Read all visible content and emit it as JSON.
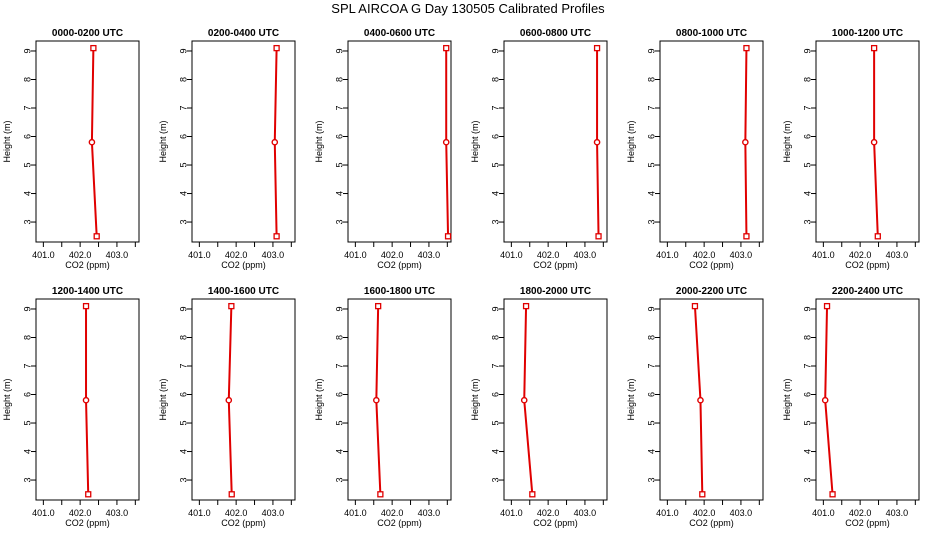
{
  "title": "SPL AIRCOA G  Day 130505  Calibrated Profiles",
  "chart_data": [
    {
      "type": "line",
      "title": "0000-0200 UTC",
      "xlabel": "CO2 (ppm)",
      "ylabel": "Height (m)",
      "xlim": [
        400.8,
        403.6
      ],
      "ylim": [
        2.3,
        9.35
      ],
      "xticks": [
        401.0,
        401.5,
        402.0,
        402.5,
        403.0,
        403.5
      ],
      "xticklabels": [
        "401.0",
        "",
        "402.0",
        "",
        "403.0",
        ""
      ],
      "yticks": [
        3,
        4,
        5,
        6,
        7,
        8,
        9
      ],
      "heights": [
        2.5,
        5.8,
        9.1
      ],
      "co2": [
        402.45,
        402.32,
        402.36
      ],
      "color": "#e00000"
    },
    {
      "type": "line",
      "title": "0200-0400 UTC",
      "xlabel": "CO2 (ppm)",
      "ylabel": "Height (m)",
      "xlim": [
        400.8,
        403.6
      ],
      "ylim": [
        2.3,
        9.35
      ],
      "xticks": [
        401.0,
        401.5,
        402.0,
        402.5,
        403.0,
        403.5
      ],
      "xticklabels": [
        "401.0",
        "",
        "402.0",
        "",
        "403.0",
        ""
      ],
      "yticks": [
        3,
        4,
        5,
        6,
        7,
        8,
        9
      ],
      "heights": [
        2.5,
        5.8,
        9.1
      ],
      "co2": [
        403.1,
        403.05,
        403.1
      ],
      "color": "#e00000"
    },
    {
      "type": "line",
      "title": "0400-0600 UTC",
      "xlabel": "CO2 (ppm)",
      "ylabel": "Height (m)",
      "xlim": [
        400.8,
        403.6
      ],
      "ylim": [
        2.3,
        9.35
      ],
      "xticks": [
        401.0,
        401.5,
        402.0,
        402.5,
        403.0,
        403.5
      ],
      "xticklabels": [
        "401.0",
        "",
        "402.0",
        "",
        "403.0",
        ""
      ],
      "yticks": [
        3,
        4,
        5,
        6,
        7,
        8,
        9
      ],
      "heights": [
        2.5,
        5.8,
        9.1
      ],
      "co2": [
        403.52,
        403.47,
        403.47
      ],
      "color": "#e00000"
    },
    {
      "type": "line",
      "title": "0600-0800 UTC",
      "xlabel": "CO2 (ppm)",
      "ylabel": "Height (m)",
      "xlim": [
        400.8,
        403.6
      ],
      "ylim": [
        2.3,
        9.35
      ],
      "xticks": [
        401.0,
        401.5,
        402.0,
        402.5,
        403.0,
        403.5
      ],
      "xticklabels": [
        "401.0",
        "",
        "402.0",
        "",
        "403.0",
        ""
      ],
      "yticks": [
        3,
        4,
        5,
        6,
        7,
        8,
        9
      ],
      "heights": [
        2.5,
        5.8,
        9.1
      ],
      "co2": [
        403.37,
        403.33,
        403.33
      ],
      "color": "#e00000"
    },
    {
      "type": "line",
      "title": "0800-1000 UTC",
      "xlabel": "CO2 (ppm)",
      "ylabel": "Height (m)",
      "xlim": [
        400.8,
        403.6
      ],
      "ylim": [
        2.3,
        9.35
      ],
      "xticks": [
        401.0,
        401.5,
        402.0,
        402.5,
        403.0,
        403.5
      ],
      "xticklabels": [
        "401.0",
        "",
        "402.0",
        "",
        "403.0",
        ""
      ],
      "yticks": [
        3,
        4,
        5,
        6,
        7,
        8,
        9
      ],
      "heights": [
        2.5,
        5.8,
        9.1
      ],
      "co2": [
        403.15,
        403.12,
        403.15
      ],
      "color": "#e00000"
    },
    {
      "type": "line",
      "title": "1000-1200 UTC",
      "xlabel": "CO2 (ppm)",
      "ylabel": "Height (m)",
      "xlim": [
        400.8,
        403.6
      ],
      "ylim": [
        2.3,
        9.35
      ],
      "xticks": [
        401.0,
        401.5,
        402.0,
        402.5,
        403.0,
        403.5
      ],
      "xticklabels": [
        "401.0",
        "",
        "402.0",
        "",
        "403.0",
        ""
      ],
      "yticks": [
        3,
        4,
        5,
        6,
        7,
        8,
        9
      ],
      "heights": [
        2.5,
        5.8,
        9.1
      ],
      "co2": [
        402.48,
        402.38,
        402.38
      ],
      "color": "#e00000"
    },
    {
      "type": "line",
      "title": "1200-1400 UTC",
      "xlabel": "CO2 (ppm)",
      "ylabel": "Height (m)",
      "xlim": [
        400.8,
        403.6
      ],
      "ylim": [
        2.3,
        9.35
      ],
      "xticks": [
        401.0,
        401.5,
        402.0,
        402.5,
        403.0,
        403.5
      ],
      "xticklabels": [
        "401.0",
        "",
        "402.0",
        "",
        "403.0",
        ""
      ],
      "yticks": [
        3,
        4,
        5,
        6,
        7,
        8,
        9
      ],
      "heights": [
        2.5,
        5.8,
        9.1
      ],
      "co2": [
        402.22,
        402.16,
        402.16
      ],
      "color": "#e00000"
    },
    {
      "type": "line",
      "title": "1400-1600 UTC",
      "xlabel": "CO2 (ppm)",
      "ylabel": "Height (m)",
      "xlim": [
        400.8,
        403.6
      ],
      "ylim": [
        2.3,
        9.35
      ],
      "xticks": [
        401.0,
        401.5,
        402.0,
        402.5,
        403.0,
        403.5
      ],
      "xticklabels": [
        "401.0",
        "",
        "402.0",
        "",
        "403.0",
        ""
      ],
      "yticks": [
        3,
        4,
        5,
        6,
        7,
        8,
        9
      ],
      "heights": [
        2.5,
        5.8,
        9.1
      ],
      "co2": [
        401.88,
        401.8,
        401.87
      ],
      "color": "#e00000"
    },
    {
      "type": "line",
      "title": "1600-1800 UTC",
      "xlabel": "CO2 (ppm)",
      "ylabel": "Height (m)",
      "xlim": [
        400.8,
        403.6
      ],
      "ylim": [
        2.3,
        9.35
      ],
      "xticks": [
        401.0,
        401.5,
        402.0,
        402.5,
        403.0,
        403.5
      ],
      "xticklabels": [
        "401.0",
        "",
        "402.0",
        "",
        "403.0",
        ""
      ],
      "yticks": [
        3,
        4,
        5,
        6,
        7,
        8,
        9
      ],
      "heights": [
        2.5,
        5.8,
        9.1
      ],
      "co2": [
        401.68,
        401.57,
        401.62
      ],
      "color": "#e00000"
    },
    {
      "type": "line",
      "title": "1800-2000 UTC",
      "xlabel": "CO2 (ppm)",
      "ylabel": "Height (m)",
      "xlim": [
        400.8,
        403.6
      ],
      "ylim": [
        2.3,
        9.35
      ],
      "xticks": [
        401.0,
        401.5,
        402.0,
        402.5,
        403.0,
        403.5
      ],
      "xticklabels": [
        "401.0",
        "",
        "402.0",
        "",
        "403.0",
        ""
      ],
      "yticks": [
        3,
        4,
        5,
        6,
        7,
        8,
        9
      ],
      "heights": [
        2.5,
        5.8,
        9.1
      ],
      "co2": [
        401.57,
        401.35,
        401.4
      ],
      "color": "#e00000"
    },
    {
      "type": "line",
      "title": "2000-2200 UTC",
      "xlabel": "CO2 (ppm)",
      "ylabel": "Height (m)",
      "xlim": [
        400.8,
        403.6
      ],
      "ylim": [
        2.3,
        9.35
      ],
      "xticks": [
        401.0,
        401.5,
        402.0,
        402.5,
        403.0,
        403.5
      ],
      "xticklabels": [
        "401.0",
        "",
        "402.0",
        "",
        "403.0",
        ""
      ],
      "yticks": [
        3,
        4,
        5,
        6,
        7,
        8,
        9
      ],
      "heights": [
        2.5,
        5.8,
        9.1
      ],
      "co2": [
        401.95,
        401.9,
        401.75
      ],
      "color": "#e00000"
    },
    {
      "type": "line",
      "title": "2200-2400 UTC",
      "xlabel": "CO2 (ppm)",
      "ylabel": "Height (m)",
      "xlim": [
        400.8,
        403.6
      ],
      "ylim": [
        2.3,
        9.35
      ],
      "xticks": [
        401.0,
        401.5,
        402.0,
        402.5,
        403.0,
        403.5
      ],
      "xticklabels": [
        "401.0",
        "",
        "402.0",
        "",
        "403.0",
        ""
      ],
      "yticks": [
        3,
        4,
        5,
        6,
        7,
        8,
        9
      ],
      "heights": [
        2.5,
        5.8,
        9.1
      ],
      "co2": [
        401.25,
        401.05,
        401.1
      ],
      "color": "#e00000"
    }
  ]
}
